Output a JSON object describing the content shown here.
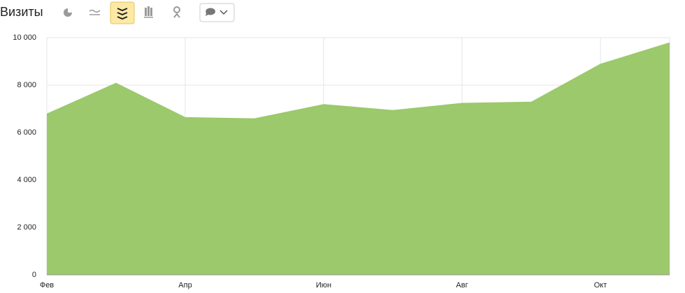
{
  "chart_data": {
    "type": "area",
    "title": "Визиты",
    "categories": [
      "Фев",
      null,
      "Апр",
      null,
      "Июн",
      null,
      "Авг",
      null,
      "Окт",
      null
    ],
    "series": [
      {
        "color": "#9bc96b",
        "values": [
          6800,
          8100,
          6650,
          6600,
          7200,
          6950,
          7250,
          7300,
          8900,
          9800
        ]
      }
    ],
    "ylim": [
      0,
      10000
    ],
    "yticks": [
      0,
      {
        "value": 2000,
        "label": "2 000"
      },
      {
        "value": 4000,
        "label": "4 000"
      },
      {
        "value": 6000,
        "label": "6 000"
      },
      {
        "value": 8000,
        "label": "8 000"
      },
      {
        "value": 10000,
        "label": "10 000"
      }
    ],
    "grid": true
  }
}
